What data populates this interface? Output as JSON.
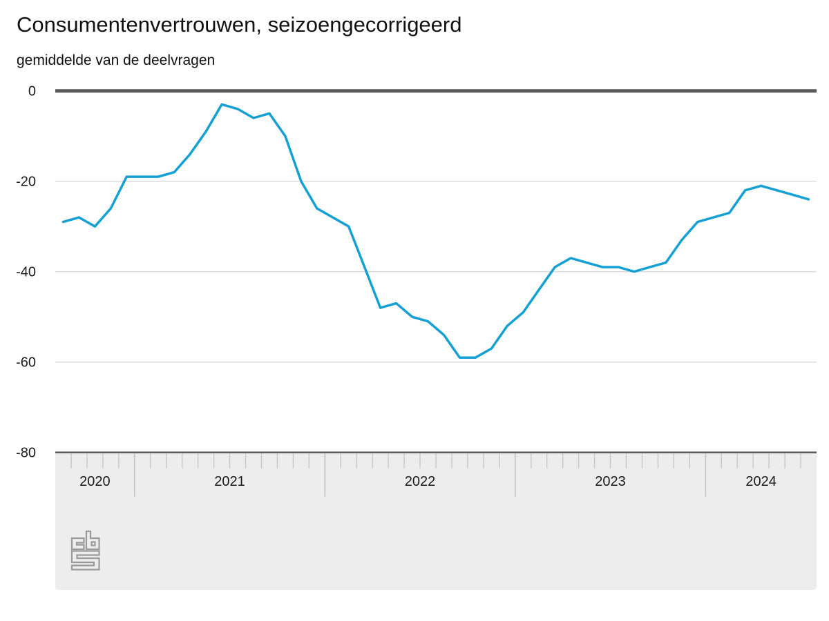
{
  "header": {
    "title": "Consumentenvertrouwen, seizoengecorrigeerd",
    "subtitle": "gemiddelde van de deelvragen"
  },
  "branding": {
    "logo": "cbs-logo"
  },
  "chart_data": {
    "type": "line",
    "title": "Consumentenvertrouwen, seizoengecorrigeerd",
    "subtitle": "gemiddelde van de deelvragen",
    "xlabel": "",
    "ylabel": "",
    "ylim": [
      -80,
      0
    ],
    "grid": true,
    "legend": "none",
    "x_axis": {
      "year_labels": [
        "2020",
        "2021",
        "2022",
        "2023",
        "2024"
      ],
      "months_before_first_year_boundary": 5
    },
    "y_axis": {
      "ticks": [
        0,
        -20,
        -40,
        -60,
        -80
      ],
      "range": [
        -80,
        0
      ]
    },
    "series": [
      {
        "name": "Consumentenvertrouwen, seizoengecorrigeerd",
        "months": [
          "2020-08",
          "2020-09",
          "2020-10",
          "2020-11",
          "2020-12",
          "2021-01",
          "2021-02",
          "2021-03",
          "2021-04",
          "2021-05",
          "2021-06",
          "2021-07",
          "2021-08",
          "2021-09",
          "2021-10",
          "2021-11",
          "2021-12",
          "2022-01",
          "2022-02",
          "2022-03",
          "2022-04",
          "2022-05",
          "2022-06",
          "2022-07",
          "2022-08",
          "2022-09",
          "2022-10",
          "2022-11",
          "2022-12",
          "2023-01",
          "2023-02",
          "2023-03",
          "2023-04",
          "2023-05",
          "2023-06",
          "2023-07",
          "2023-08",
          "2023-09",
          "2023-10",
          "2023-11",
          "2023-12",
          "2024-01",
          "2024-02",
          "2024-03",
          "2024-04",
          "2024-05",
          "2024-06",
          "2024-07"
        ],
        "values": [
          -29,
          -28,
          -30,
          -26,
          -19,
          -19,
          -19,
          -18,
          -14,
          -9,
          -3,
          -4,
          -6,
          -5,
          -10,
          -20,
          -26,
          -28,
          -30,
          -39,
          -48,
          -47,
          -50,
          -51,
          -54,
          -59,
          -59,
          -57,
          -52,
          -49,
          -44,
          -39,
          -37,
          -38,
          -39,
          -39,
          -40,
          -39,
          -38,
          -33,
          -29,
          -28,
          -27,
          -22,
          -21,
          -22,
          -23,
          -24
        ]
      }
    ],
    "colors": {
      "line": "#14a0d3",
      "zero_axis": "#58585a",
      "gridline": "#d9d9d9",
      "axis_band_fill": "#ededed",
      "axis_band_border": "#5d5d5f",
      "tick": "#c6c6c6",
      "label_text": "#1a1a1a",
      "logo": "#9a9a9a",
      "background": "#ffffff"
    }
  }
}
